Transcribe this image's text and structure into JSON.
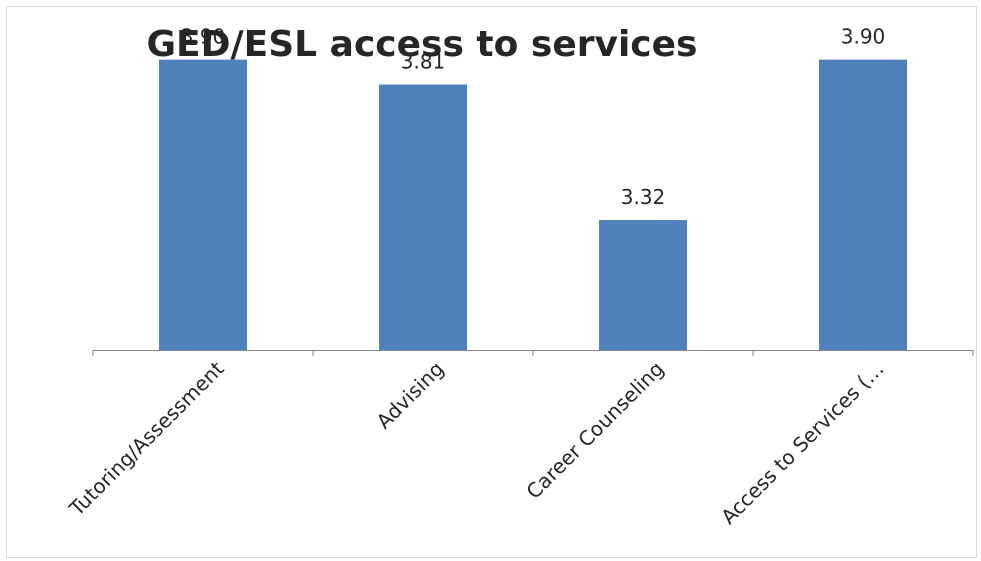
{
  "chart_data": {
    "type": "bar",
    "title": "GED/ESL access to services",
    "categories": [
      "Tutoring/Assessment",
      "Advising",
      "Career Counseling",
      "Access to Services (…"
    ],
    "values": [
      3.9,
      3.81,
      3.32,
      3.9
    ],
    "value_labels": [
      "3.90",
      "3.81",
      "3.32",
      "3.90"
    ],
    "bar_color": "#4f81bd",
    "ylim": [
      2.85,
      4.0
    ],
    "grid": false,
    "legend": "none"
  }
}
